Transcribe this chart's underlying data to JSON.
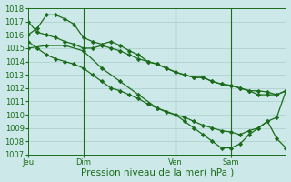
{
  "background_color": "#cce8e8",
  "grid_color": "#aacccc",
  "line_color": "#1a6b1a",
  "marker": "D",
  "markersize": 2.2,
  "linewidth": 0.9,
  "ylim": [
    1007,
    1018
  ],
  "ylabel_ticks": [
    1007,
    1008,
    1009,
    1010,
    1011,
    1012,
    1013,
    1014,
    1015,
    1016,
    1017,
    1018
  ],
  "xlabel": "Pression niveau de la mer( hPa )",
  "xlabel_fontsize": 7.5,
  "tick_fontsize": 6.0,
  "xtick_labels": [
    "Jeu",
    "Dim",
    "Ven",
    "Sam"
  ],
  "xtick_positions": [
    0,
    6,
    16,
    22
  ],
  "vline_positions": [
    6,
    16,
    22
  ],
  "xlim_max": 28,
  "series1_x": [
    0,
    1,
    2,
    3,
    4,
    5,
    6,
    7,
    8,
    9,
    10,
    11,
    12,
    13,
    14,
    15,
    16,
    17,
    18,
    19,
    20,
    21,
    22,
    23,
    24,
    25,
    26,
    27,
    28
  ],
  "series1": [
    1017.0,
    1016.2,
    1016.0,
    1015.8,
    1015.5,
    1015.3,
    1015.0,
    1015.0,
    1015.2,
    1015.0,
    1014.8,
    1014.5,
    1014.2,
    1014.0,
    1013.8,
    1013.5,
    1013.2,
    1013.0,
    1012.8,
    1012.8,
    1012.5,
    1012.3,
    1012.2,
    1012.0,
    1011.8,
    1011.8,
    1011.7,
    1011.5,
    1011.8
  ],
  "series2_x": [
    0,
    1,
    2,
    3,
    4,
    5,
    6,
    7,
    8,
    9,
    10,
    11,
    12,
    13,
    14,
    15,
    16,
    17,
    18,
    19,
    20,
    21,
    22,
    23,
    24,
    25,
    26,
    27,
    28
  ],
  "series2": [
    1016.0,
    1016.5,
    1017.5,
    1017.5,
    1017.2,
    1016.8,
    1015.8,
    1015.5,
    1015.3,
    1015.5,
    1015.2,
    1014.8,
    1014.5,
    1014.0,
    1013.8,
    1013.5,
    1013.2,
    1013.0,
    1012.8,
    1012.8,
    1012.5,
    1012.3,
    1012.2,
    1012.0,
    1011.8,
    1011.5,
    1011.5,
    1011.5,
    1011.8
  ],
  "series3_x": [
    0,
    1,
    2,
    3,
    4,
    5,
    6,
    7,
    8,
    9,
    10,
    11,
    12,
    13,
    14,
    15,
    16,
    17,
    18,
    19,
    20,
    21,
    22,
    23,
    24,
    25,
    26,
    27,
    28
  ],
  "series3": [
    1015.5,
    1015.0,
    1014.5,
    1014.2,
    1014.0,
    1013.8,
    1013.5,
    1013.0,
    1012.5,
    1012.0,
    1011.8,
    1011.5,
    1011.2,
    1010.8,
    1010.5,
    1010.2,
    1010.0,
    1009.8,
    1009.5,
    1009.2,
    1009.0,
    1008.8,
    1008.7,
    1008.5,
    1008.8,
    1009.0,
    1009.5,
    1009.8,
    1011.8
  ],
  "series4_x": [
    0,
    2,
    4,
    6,
    8,
    10,
    12,
    14,
    16,
    17,
    18,
    19,
    20,
    21,
    22,
    23,
    24,
    25,
    26,
    27,
    28
  ],
  "series4": [
    1015.0,
    1015.2,
    1015.2,
    1014.8,
    1013.5,
    1012.5,
    1011.5,
    1010.5,
    1010.0,
    1009.5,
    1009.0,
    1008.5,
    1008.0,
    1007.5,
    1007.5,
    1007.8,
    1008.5,
    1009.0,
    1009.5,
    1008.2,
    1007.5
  ]
}
